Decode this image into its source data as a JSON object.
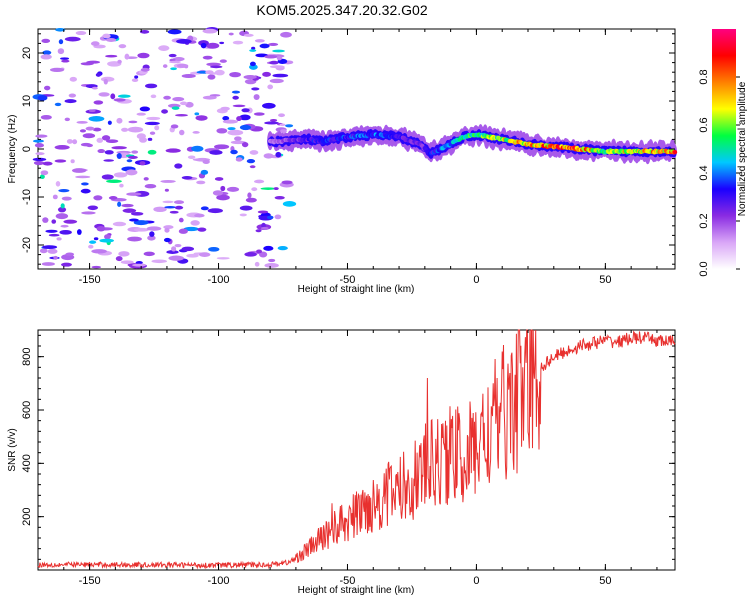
{
  "title": "KOM5.2025.347.20.32.G02",
  "chart_data": [
    {
      "type": "heatmap",
      "title": "KOM5.2025.347.20.32.G02",
      "xlabel": "Height of straight line (km)",
      "ylabel": "Frequency (Hz)",
      "xlim": [
        -170,
        77
      ],
      "ylim": [
        -25,
        25
      ],
      "xticks": [
        -150,
        -100,
        -50,
        0,
        50
      ],
      "yticks": [
        -20,
        -10,
        0,
        10,
        20
      ],
      "colorbar": {
        "label": "Normalized spectral amplitude",
        "range": [
          0,
          1
        ],
        "ticks": [
          0.0,
          0.2,
          0.4,
          0.6,
          0.8
        ],
        "colors": [
          "#ffffff",
          "#d9a6f7",
          "#8a2be2",
          "#1a00ff",
          "#00c8ff",
          "#00ff40",
          "#ffff00",
          "#ff8000",
          "#ff0000",
          "#ff0080"
        ]
      },
      "noise_region_x": [
        -170,
        -72
      ],
      "signal_x": [
        -80,
        -65,
        -60,
        -50,
        -40,
        -30,
        -22,
        -18,
        -12,
        -5,
        0,
        10,
        20,
        30,
        40,
        50,
        60,
        70,
        77
      ],
      "signal_freq": [
        1.5,
        2.0,
        1.5,
        2.5,
        3.0,
        2.5,
        1.0,
        -1.0,
        0.5,
        2.5,
        3.0,
        2.0,
        1.0,
        0.5,
        0.0,
        -0.5,
        -0.5,
        -0.5,
        -0.5
      ],
      "signal_amp": [
        0.15,
        0.3,
        0.35,
        0.35,
        0.4,
        0.3,
        0.25,
        0.3,
        0.45,
        0.5,
        0.55,
        0.65,
        0.75,
        0.8,
        0.85,
        0.6,
        0.7,
        0.75,
        0.8
      ]
    },
    {
      "type": "line",
      "xlabel": "Height of straight line (km)",
      "ylabel": "SNR (v/v)",
      "xlim": [
        -170,
        77
      ],
      "ylim": [
        0,
        900
      ],
      "xticks": [
        -150,
        -100,
        -50,
        0,
        50
      ],
      "yticks": [
        200,
        400,
        600,
        800
      ],
      "color": "#e8302e",
      "series": [
        {
          "name": "SNR",
          "x": [
            -170,
            -140,
            -100,
            -80,
            -72,
            -65,
            -60,
            -55,
            -50,
            -45,
            -40,
            -35,
            -30,
            -25,
            -20,
            -15,
            -10,
            -5,
            0,
            5,
            10,
            15,
            20,
            25,
            30,
            35,
            40,
            45,
            50,
            55,
            60,
            65,
            70,
            77
          ],
          "y": [
            20,
            20,
            18,
            20,
            30,
            80,
            120,
            160,
            180,
            220,
            250,
            280,
            300,
            330,
            380,
            400,
            440,
            420,
            460,
            520,
            580,
            640,
            700,
            760,
            800,
            820,
            840,
            850,
            860,
            855,
            870,
            870,
            860,
            855
          ]
        }
      ],
      "peaks": {
        "x": [
          -56,
          -44,
          -35,
          -28,
          -19,
          -12,
          -6,
          0,
          6,
          12,
          18
        ],
        "y": [
          250,
          300,
          380,
          360,
          720,
          560,
          420,
          470,
          600,
          700,
          760
        ]
      }
    }
  ]
}
